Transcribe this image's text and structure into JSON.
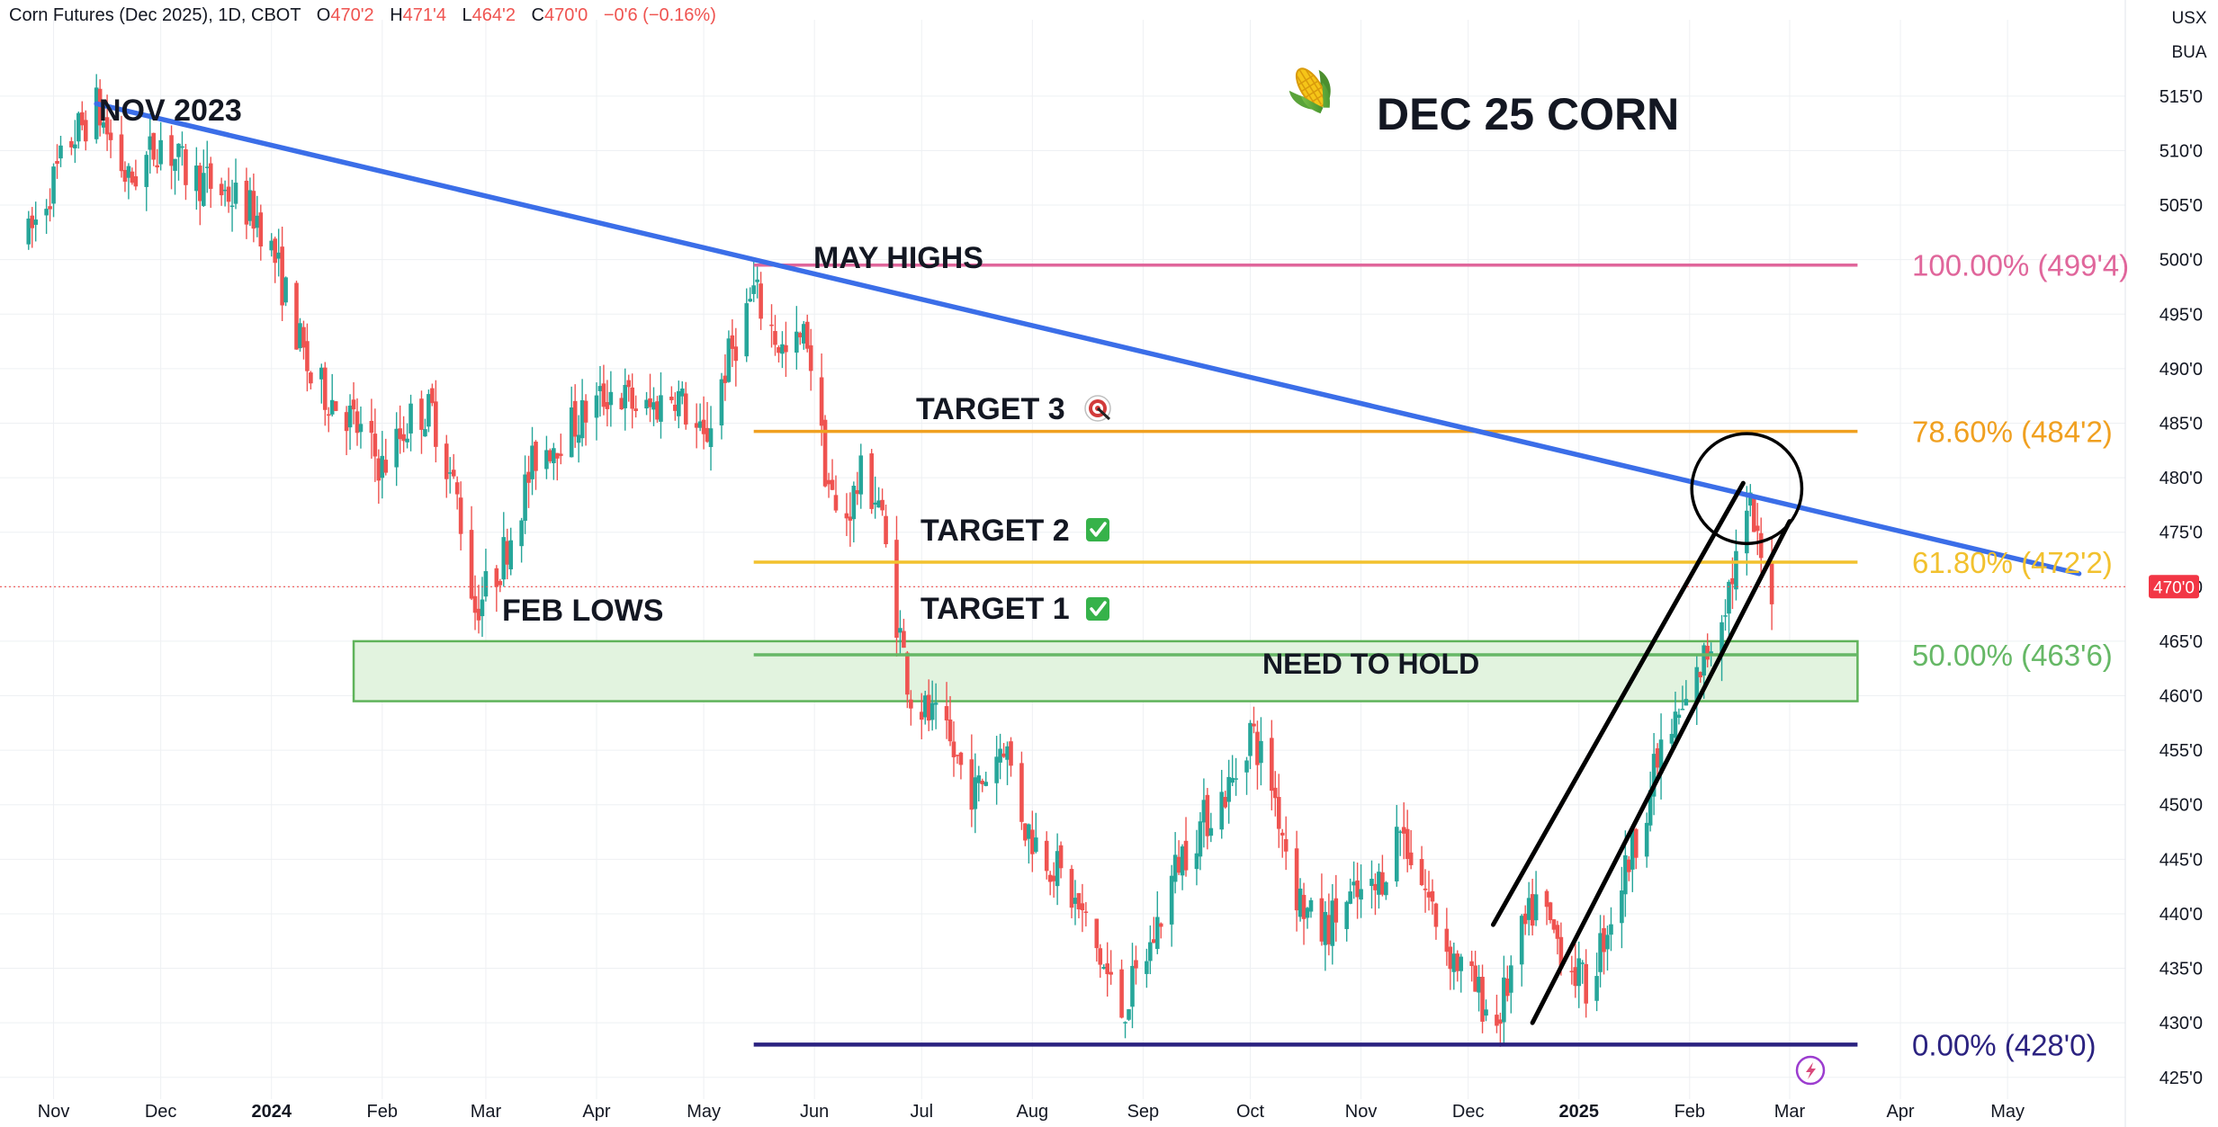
{
  "header": {
    "symbol": "Corn Futures (Dec 2025), 1D, CBOT",
    "o_key": "O",
    "o_val": "470'2",
    "h_key": "H",
    "h_val": "471'4",
    "l_key": "L",
    "l_val": "464'2",
    "c_key": "C",
    "c_val": "470'0",
    "change": "−0'6 (−0.16%)"
  },
  "currency": "USX",
  "unit": "BUA",
  "current_price_label": "470'0",
  "colors": {
    "up": "#26a69a",
    "down": "#ef5350",
    "trendline": "#3b6ee8",
    "fib_100": "#e0669b",
    "fib_786": "#f0a020",
    "fib_618": "#f2c12e",
    "fib_50": "#66b866",
    "fib_0": "#2b2280",
    "zone_fill": "#e2f3df",
    "zone_stroke": "#5fb35a"
  },
  "chart_data": {
    "type": "candlestick",
    "title": "DEC 25 CORN",
    "title_icon": "corn-emoji-icon",
    "y_ticks": [
      "515'0",
      "510'0",
      "505'0",
      "500'0",
      "495'0",
      "490'0",
      "485'0",
      "480'0",
      "475'0",
      "470'0",
      "465'0",
      "460'0",
      "455'0",
      "450'0",
      "445'0",
      "440'0",
      "435'0",
      "430'0",
      "425'0"
    ],
    "y_tick_values": [
      515,
      510,
      505,
      500,
      495,
      490,
      485,
      480,
      475,
      470,
      465,
      460,
      455,
      450,
      445,
      440,
      435,
      430,
      425
    ],
    "x_ticks": [
      "Nov",
      "Dec",
      "2024",
      "Feb",
      "Mar",
      "Apr",
      "May",
      "Jun",
      "Jul",
      "Aug",
      "Sep",
      "Oct",
      "Nov",
      "Dec",
      "2025",
      "Feb",
      "Mar",
      "Apr",
      "May"
    ],
    "x_tick_dates": [
      "2023-11-01",
      "2023-12-01",
      "2024-01-01",
      "2024-02-01",
      "2024-03-01",
      "2024-04-01",
      "2024-05-01",
      "2024-06-01",
      "2024-07-01",
      "2024-08-01",
      "2024-09-01",
      "2024-10-01",
      "2024-11-01",
      "2024-12-01",
      "2025-01-01",
      "2025-02-01",
      "2025-03-01",
      "2025-04-01",
      "2025-05-01"
    ],
    "ylim": [
      423,
      522
    ],
    "last_price": 470.0,
    "price_anchors": [
      [
        "2023-10-25",
        502
      ],
      [
        "2023-11-06",
        511
      ],
      [
        "2023-11-13",
        514
      ],
      [
        "2023-11-22",
        507
      ],
      [
        "2023-12-01",
        511
      ],
      [
        "2023-12-08",
        508
      ],
      [
        "2023-12-20",
        506
      ],
      [
        "2023-12-28",
        504
      ],
      [
        "2024-01-02",
        500
      ],
      [
        "2024-01-12",
        489
      ],
      [
        "2024-01-22",
        486
      ],
      [
        "2024-02-01",
        481
      ],
      [
        "2024-02-10",
        486
      ],
      [
        "2024-02-15",
        486
      ],
      [
        "2024-02-22",
        478
      ],
      [
        "2024-02-27",
        468
      ],
      [
        "2024-03-05",
        472
      ],
      [
        "2024-03-15",
        482
      ],
      [
        "2024-03-26",
        485
      ],
      [
        "2024-04-05",
        488
      ],
      [
        "2024-04-15",
        486
      ],
      [
        "2024-04-23",
        488
      ],
      [
        "2024-05-01",
        483
      ],
      [
        "2024-05-07",
        490
      ],
      [
        "2024-05-15",
        497
      ],
      [
        "2024-05-24",
        491
      ],
      [
        "2024-05-30",
        493
      ],
      [
        "2024-06-04",
        481
      ],
      [
        "2024-06-08",
        475
      ],
      [
        "2024-06-14",
        480
      ],
      [
        "2024-06-19",
        478
      ],
      [
        "2024-06-22",
        471
      ],
      [
        "2024-06-28",
        460
      ],
      [
        "2024-07-06",
        457
      ],
      [
        "2024-07-16",
        451
      ],
      [
        "2024-07-24",
        456
      ],
      [
        "2024-07-30",
        448
      ],
      [
        "2024-08-08",
        444
      ],
      [
        "2024-08-16",
        439
      ],
      [
        "2024-08-26",
        431
      ],
      [
        "2024-09-03",
        437
      ],
      [
        "2024-09-11",
        445
      ],
      [
        "2024-09-19",
        449
      ],
      [
        "2024-09-26",
        452
      ],
      [
        "2024-10-01",
        457
      ],
      [
        "2024-10-07",
        452
      ],
      [
        "2024-10-14",
        442
      ],
      [
        "2024-10-20",
        438
      ],
      [
        "2024-10-28",
        441
      ],
      [
        "2024-11-05",
        442
      ],
      [
        "2024-11-12",
        448
      ],
      [
        "2024-11-18",
        443
      ],
      [
        "2024-11-25",
        437
      ],
      [
        "2024-12-03",
        433
      ],
      [
        "2024-12-09",
        430
      ],
      [
        "2024-12-15",
        437
      ],
      [
        "2024-12-20",
        441
      ],
      [
        "2024-12-27",
        437
      ],
      [
        "2025-01-03",
        433
      ],
      [
        "2025-01-10",
        440
      ],
      [
        "2025-01-17",
        447
      ],
      [
        "2025-01-24",
        455
      ],
      [
        "2025-01-31",
        459
      ],
      [
        "2025-02-07",
        465
      ],
      [
        "2025-02-12",
        470
      ],
      [
        "2025-02-18",
        477
      ],
      [
        "2025-02-21",
        472
      ],
      [
        "2025-02-24",
        470
      ]
    ],
    "trendline": {
      "start": [
        "2023-11-13",
        514.3
      ],
      "end": [
        "2025-05-21",
        471.2
      ]
    },
    "fib_levels": [
      {
        "name": "100.00%",
        "label": "100.00% (499'4)",
        "value": 499.5,
        "start": "2024-05-15",
        "end": "2025-03-20",
        "color_key": "fib_100"
      },
      {
        "name": "78.60%",
        "label": "78.60% (484'2)",
        "value": 484.25,
        "start": "2024-05-15",
        "end": "2025-03-20",
        "color_key": "fib_786"
      },
      {
        "name": "61.80%",
        "label": "61.80% (472'2)",
        "value": 472.25,
        "start": "2024-05-15",
        "end": "2025-03-20",
        "color_key": "fib_618"
      },
      {
        "name": "50.00%",
        "label": "50.00% (463'6)",
        "value": 463.75,
        "start": "2024-05-15",
        "end": "2025-03-20",
        "color_key": "fib_50"
      },
      {
        "name": "0.00%",
        "label": "0.00% (428'0)",
        "value": 428.0,
        "start": "2024-05-15",
        "end": "2025-03-20",
        "color_key": "fib_0"
      }
    ],
    "support_zone": {
      "x_start": "2024-01-24",
      "x_end": "2025-03-20",
      "y_low": 459.5,
      "y_high": 465.0
    },
    "channel_lines": [
      {
        "start": [
          "2024-12-08",
          439.0
        ],
        "end": [
          "2025-02-16",
          479.5
        ]
      },
      {
        "start": [
          "2024-12-19",
          430.0
        ],
        "end": [
          "2025-03-01",
          476.0
        ]
      }
    ],
    "highlight_circle": {
      "center": [
        "2025-02-17",
        479.0
      ],
      "radius_days": 5.5
    },
    "annotations": {
      "nov_2023": "NOV 2023",
      "may_highs": "MAY HIGHS",
      "feb_lows": "FEB LOWS",
      "target_3": "TARGET 3",
      "target_2": "TARGET 2",
      "target_1": "TARGET 1",
      "need_to_hold": "NEED TO HOLD",
      "target_3_icon": "target-dart-icon",
      "target_2_icon": "check-mark-icon",
      "target_1_icon": "check-mark-icon"
    }
  }
}
